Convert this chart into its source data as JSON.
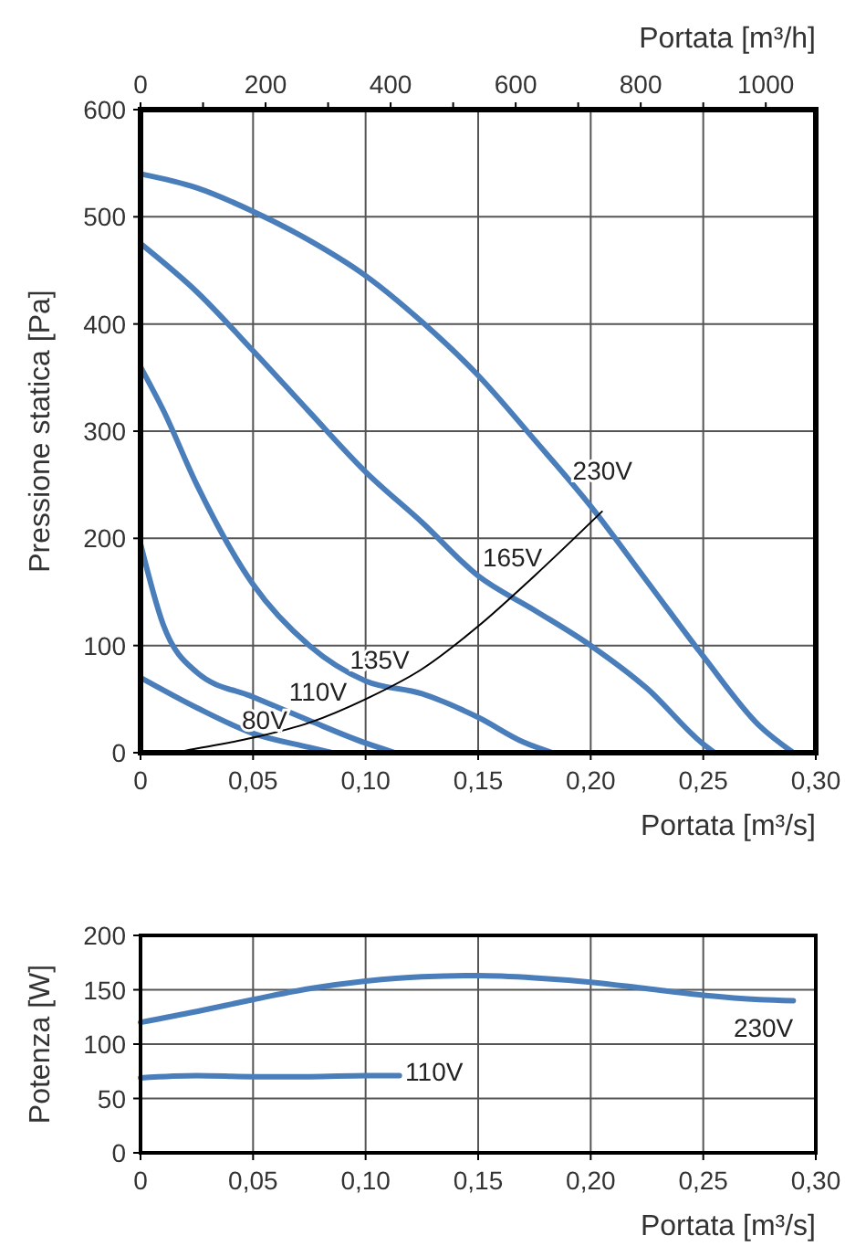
{
  "chart_data": [
    {
      "type": "line",
      "xlabel": "Portata [m³/s]",
      "ylabel": "Pressione statica [Pa]",
      "x2label": "Portata [m³/h]",
      "xlim": [
        0,
        0.3
      ],
      "xticks": [
        0,
        {
          "value": 0.05,
          "label": "0,05"
        },
        {
          "value": 0.1,
          "label": "0,10"
        },
        {
          "value": 0.15,
          "label": "0,15"
        },
        {
          "value": 0.2,
          "label": "0,20"
        },
        {
          "value": 0.25,
          "label": "0,25"
        },
        {
          "value": 0.3,
          "label": "0,30"
        }
      ],
      "x2lim": [
        0,
        1080
      ],
      "x2ticks": [
        0,
        {
          "value": 100,
          "label": null
        },
        200,
        {
          "value": 300,
          "label": null
        },
        400,
        {
          "value": 500,
          "label": null
        },
        600,
        {
          "value": 700,
          "label": null
        },
        800,
        {
          "value": 900,
          "label": null
        },
        1000
      ],
      "ylim": [
        0,
        600
      ],
      "yticks": [
        0,
        100,
        200,
        300,
        400,
        500,
        600
      ],
      "grid": true,
      "marker": "none",
      "line_style": "solid",
      "series": [
        {
          "color": "#4a7ebb",
          "x": [
            0,
            0.025,
            0.05,
            0.075,
            0.1,
            0.125,
            0.15,
            0.175,
            0.2,
            0.225,
            0.25,
            0.275,
            0.29
          ],
          "values": [
            540,
            527,
            505,
            478,
            445,
            402,
            352,
            292,
            230,
            160,
            90,
            25,
            0
          ]
        },
        {
          "color": "#4a7ebb",
          "x": [
            0,
            0.025,
            0.05,
            0.075,
            0.1,
            0.125,
            0.15,
            0.175,
            0.2,
            0.225,
            0.25,
            0.255
          ],
          "values": [
            475,
            430,
            375,
            318,
            262,
            215,
            165,
            133,
            100,
            60,
            8,
            0
          ]
        },
        {
          "color": "#4a7ebb",
          "x": [
            0,
            0.01,
            0.025,
            0.05,
            0.075,
            0.1,
            0.125,
            0.15,
            0.17,
            0.183
          ],
          "values": [
            360,
            320,
            250,
            157,
            100,
            67,
            55,
            33,
            10,
            0
          ]
        },
        {
          "color": "#4a7ebb",
          "x": [
            0,
            0.01,
            0.025,
            0.05,
            0.075,
            0.1,
            0.113
          ],
          "values": [
            195,
            120,
            75,
            52,
            30,
            9,
            0
          ]
        },
        {
          "color": "#4a7ebb",
          "x": [
            0,
            0.025,
            0.05,
            0.075,
            0.085
          ],
          "values": [
            70,
            42,
            18,
            5,
            0
          ]
        },
        {
          "color": "#000000",
          "x": [
            0.015,
            0.02,
            0.05,
            0.075,
            0.1,
            0.125,
            0.15,
            0.175,
            0.205
          ],
          "values": [
            0,
            2,
            14,
            28,
            50,
            78,
            118,
            165,
            225
          ]
        }
      ],
      "annotations": [
        {
          "text": "230V",
          "x": 0.192,
          "y": 255
        },
        {
          "text": "165V",
          "x": 0.152,
          "y": 174
        },
        {
          "text": "135V",
          "x": 0.093,
          "y": 78
        },
        {
          "text": "110V",
          "x": 0.066,
          "y": 49
        },
        {
          "text": "80V",
          "x": 0.045,
          "y": 22
        }
      ]
    },
    {
      "type": "line",
      "xlabel": "Portata [m³/s]",
      "ylabel": "Potenza [W]",
      "xlim": [
        0,
        0.3
      ],
      "xticks": [
        0,
        {
          "value": 0.05,
          "label": "0,05"
        },
        {
          "value": 0.1,
          "label": "0,10"
        },
        {
          "value": 0.15,
          "label": "0,15"
        },
        {
          "value": 0.2,
          "label": "0,20"
        },
        {
          "value": 0.25,
          "label": "0,25"
        },
        {
          "value": 0.3,
          "label": "0,30"
        }
      ],
      "ylim": [
        0,
        200
      ],
      "yticks": [
        0,
        50,
        100,
        150,
        200
      ],
      "grid": true,
      "marker": "none",
      "line_style": "solid",
      "series": [
        {
          "color": "#4a7ebb",
          "x": [
            0,
            0.025,
            0.05,
            0.075,
            0.1,
            0.125,
            0.15,
            0.175,
            0.2,
            0.225,
            0.25,
            0.275,
            0.29
          ],
          "values": [
            120,
            130,
            141,
            151,
            158,
            162,
            163,
            161,
            157,
            151,
            145,
            141,
            140
          ]
        },
        {
          "color": "#4a7ebb",
          "x": [
            0,
            0.025,
            0.05,
            0.075,
            0.1,
            0.115
          ],
          "values": [
            69,
            71,
            70,
            70,
            71,
            71
          ]
        }
      ],
      "annotations": [
        {
          "text": "230V",
          "x": 0.29,
          "y": 140
        },
        {
          "text": "110V",
          "x": 0.1176,
          "y": 66
        }
      ]
    }
  ]
}
